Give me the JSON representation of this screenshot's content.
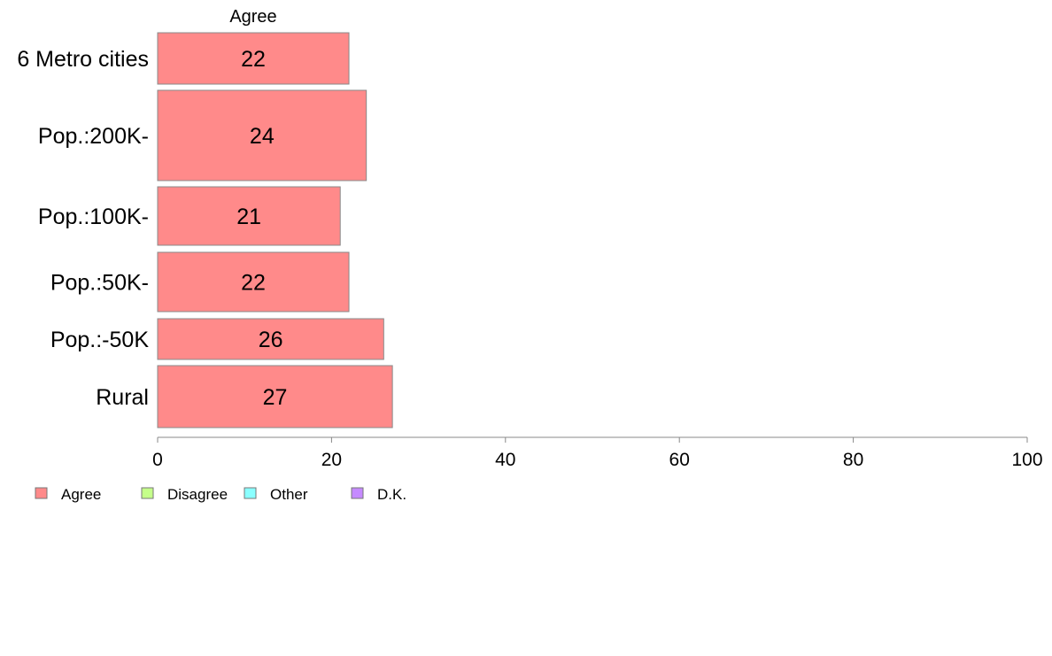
{
  "chart_data": {
    "type": "bar",
    "orientation": "horizontal",
    "panel_title": "Agree",
    "categories": [
      "6 Metro cities",
      "Pop.:200K-",
      "Pop.:100K-",
      "Pop.:50K-",
      "Pop.:-50K",
      "Rural"
    ],
    "series": [
      {
        "name": "Agree",
        "values": [
          22,
          24,
          21,
          22,
          26,
          27
        ],
        "color": "#ff8a8a"
      }
    ],
    "xlim": [
      0,
      100
    ],
    "xticks": [
      0,
      20,
      40,
      60,
      80,
      100
    ],
    "grid": false,
    "legend_position": "bottom-left",
    "legend": [
      {
        "label": "Agree",
        "color": "#ff8a8a"
      },
      {
        "label": "Disagree",
        "color": "#c5ff8a"
      },
      {
        "label": "Other",
        "color": "#8affff"
      },
      {
        "label": "D.K.",
        "color": "#c58aff"
      }
    ]
  }
}
